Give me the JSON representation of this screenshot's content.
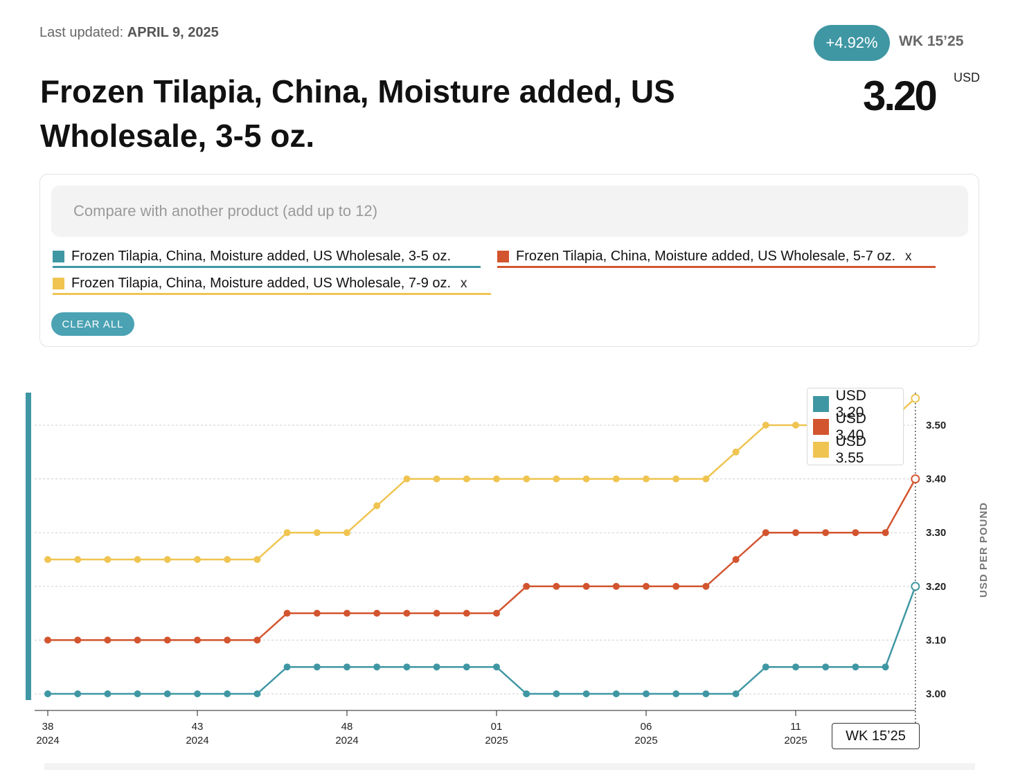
{
  "header": {
    "updated_prefix": "Last updated:",
    "updated_date": "APRIL 9, 2025",
    "title": "Frozen Tilapia, China, Moisture added, US Wholesale, 3-5 oz.",
    "change_pct": "+4.92%",
    "week": "WK 15’25",
    "price": "3.20",
    "currency": "USD"
  },
  "compare": {
    "placeholder": "Compare with another product (add up to 12)",
    "tags": [
      {
        "label": "Frozen Tilapia, China, Moisture added, US Wholesale, 3-5 oz.",
        "color": "#3f97a3",
        "removable": false
      },
      {
        "label": "Frozen Tilapia, China, Moisture added, US Wholesale, 5-7 oz.",
        "color": "#d2552f",
        "removable": true
      },
      {
        "label": "Frozen Tilapia, China, Moisture added, US Wholesale, 7-9 oz.",
        "color": "#efc451",
        "removable": true
      }
    ],
    "remove_symbol": "x",
    "clear_all": "CLEAR ALL"
  },
  "chart_data": {
    "type": "line",
    "ylabel": "USD PER POUND",
    "ylim": [
      2.97,
      3.57
    ],
    "yticks": [
      "3.00",
      "3.10",
      "3.20",
      "3.30",
      "3.40",
      "3.50"
    ],
    "xticks": [
      {
        "week": "38",
        "year": "2024"
      },
      {
        "week": "43",
        "year": "2024"
      },
      {
        "week": "48",
        "year": "2024"
      },
      {
        "week": "01",
        "year": "2025"
      },
      {
        "week": "06",
        "year": "2025"
      },
      {
        "week": "11",
        "year": "2025"
      }
    ],
    "x": [
      "38 2024",
      "39 2024",
      "40 2024",
      "41 2024",
      "42 2024",
      "43 2024",
      "44 2024",
      "45 2024",
      "46 2024",
      "47 2024",
      "48 2024",
      "49 2024",
      "50 2024",
      "51 2024",
      "52 2024",
      "01 2025",
      "02 2025",
      "03 2025",
      "04 2025",
      "05 2025",
      "06 2025",
      "07 2025",
      "08 2025",
      "09 2025",
      "10 2025",
      "11 2025",
      "12 2025",
      "13 2025",
      "14 2025",
      "15 2025"
    ],
    "series": [
      {
        "name": "Frozen Tilapia, China, Moisture added, US Wholesale, 3-5 oz.",
        "color": "#3f97a3",
        "values": [
          3.0,
          3.0,
          3.0,
          3.0,
          3.0,
          3.0,
          3.0,
          3.0,
          3.05,
          3.05,
          3.05,
          3.05,
          3.05,
          3.05,
          3.05,
          3.05,
          3.0,
          3.0,
          3.0,
          3.0,
          3.0,
          3.0,
          3.0,
          3.0,
          3.05,
          3.05,
          3.05,
          3.05,
          3.05,
          3.2
        ]
      },
      {
        "name": "Frozen Tilapia, China, Moisture added, US Wholesale, 5-7 oz.",
        "color": "#d2552f",
        "values": [
          3.1,
          3.1,
          3.1,
          3.1,
          3.1,
          3.1,
          3.1,
          3.1,
          3.15,
          3.15,
          3.15,
          3.15,
          3.15,
          3.15,
          3.15,
          3.15,
          3.2,
          3.2,
          3.2,
          3.2,
          3.2,
          3.2,
          3.2,
          3.25,
          3.3,
          3.3,
          3.3,
          3.3,
          3.3,
          3.4
        ]
      },
      {
        "name": "Frozen Tilapia, China, Moisture added, US Wholesale, 7-9 oz.",
        "color": "#efc451",
        "values": [
          3.25,
          3.25,
          3.25,
          3.25,
          3.25,
          3.25,
          3.25,
          3.25,
          3.3,
          3.3,
          3.3,
          3.35,
          3.4,
          3.4,
          3.4,
          3.4,
          3.4,
          3.4,
          3.4,
          3.4,
          3.4,
          3.4,
          3.4,
          3.45,
          3.5,
          3.5,
          3.5,
          3.5,
          3.5,
          3.55
        ]
      }
    ],
    "legend": [
      {
        "label": "USD 3.20",
        "color": "#3f97a3"
      },
      {
        "label": "USD 3.40",
        "color": "#d2552f"
      },
      {
        "label": "USD 3.55",
        "color": "#efc451"
      }
    ],
    "legend_position": "top-right",
    "grid": true,
    "crosshair_label": "WK 15’25"
  }
}
